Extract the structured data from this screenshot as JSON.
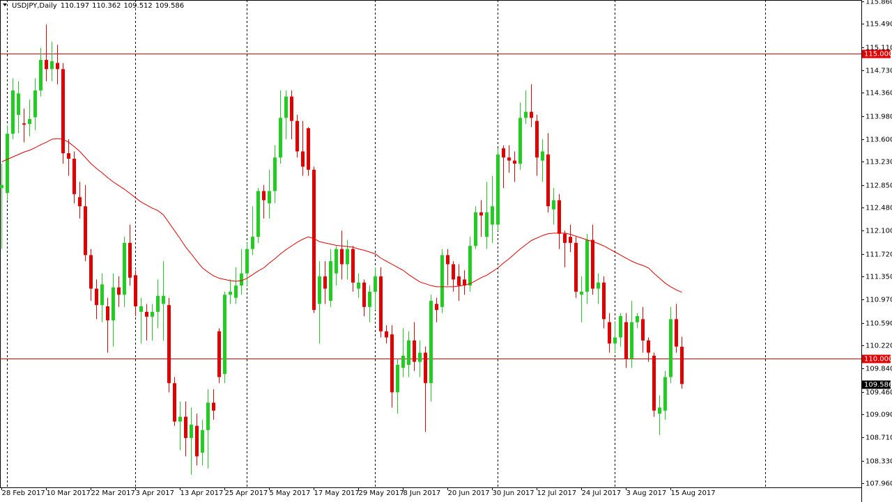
{
  "chart_data": {
    "type": "candlestick",
    "title": "USDJPY,Daily",
    "categories": [
      "28 Feb 2017",
      null,
      null,
      null,
      null,
      null,
      null,
      null,
      "10 Mar 2017",
      null,
      null,
      null,
      null,
      null,
      null,
      null,
      "22 Mar 2017",
      null,
      null,
      null,
      null,
      null,
      null,
      null,
      "3 Apr 2017",
      null,
      null,
      null,
      null,
      null,
      null,
      null,
      "13 Apr 2017",
      null,
      null,
      null,
      null,
      null,
      null,
      null,
      "25 Apr 2017",
      null,
      null,
      null,
      null,
      null,
      null,
      null,
      "5 May 2017",
      null,
      null,
      null,
      null,
      null,
      null,
      null,
      "17 May 2017",
      null,
      null,
      null,
      null,
      null,
      null,
      null,
      "29 May 2017",
      null,
      null,
      null,
      null,
      null,
      null,
      null,
      "8 Jun 2017",
      null,
      null,
      null,
      null,
      null,
      null,
      null,
      "20 Jun 2017",
      null,
      null,
      null,
      null,
      null,
      null,
      null,
      "30 Jun 2017",
      null,
      null,
      null,
      null,
      null,
      null,
      null,
      "12 Jul 2017",
      null,
      null,
      null,
      null,
      null,
      null,
      null,
      "24 Jul 2017",
      null,
      null,
      null,
      null,
      null,
      null,
      null,
      "3 Aug 2017",
      null,
      null,
      null,
      null,
      null,
      null,
      null,
      "15 Aug 2017",
      null,
      null
    ],
    "open": [
      112.8,
      112.72,
      113.69,
      114.0,
      113.86,
      113.85,
      113.96,
      114.4,
      114.9,
      114.75,
      114.85,
      114.75,
      113.37,
      113.28,
      112.65,
      112.5,
      111.7,
      111.15,
      110.88,
      110.86,
      110.63,
      111.17,
      111.05,
      111.9,
      111.37,
      110.77,
      110.77,
      110.69,
      110.77,
      110.9,
      110.88,
      109.6,
      108.97,
      109.05,
      108.7,
      108.9,
      108.46,
      108.83,
      109.28,
      110.45,
      109.75,
      111.05,
      111.0,
      111.2,
      111.4,
      111.8,
      112.0,
      112.75,
      112.55,
      112.75,
      113.3,
      113.95,
      114.3,
      113.9,
      113.4,
      113.78,
      113.1,
      110.9,
      111.35,
      110.95,
      111.4,
      111.8,
      111.55,
      111.8,
      111.15,
      111.25,
      110.85,
      111.1,
      111.35,
      110.45,
      110.4,
      109.45,
      109.85,
      109.9,
      110.3,
      109.95,
      110.1,
      109.6,
      110.9,
      110.85,
      111.7,
      111.55,
      111.35,
      111.3,
      111.2,
      111.85,
      112.4,
      112.0,
      112.2,
      112.2,
      113.45,
      113.3,
      113.25,
      113.2,
      113.95,
      114.05,
      113.9,
      113.25,
      113.35,
      112.45,
      112.6,
      112.05,
      112.0,
      111.9,
      111.05,
      111.1,
      111.95,
      111.15,
      111.25,
      110.6,
      110.25,
      110.35,
      110.6,
      110.0,
      110.6,
      110.65,
      110.3,
      110.05,
      109.1,
      109.15,
      109.7,
      110.65,
      110.197
    ],
    "high": [
      113.2,
      113.83,
      114.6,
      114.55,
      114.1,
      114.25,
      114.6,
      115.1,
      115.48,
      115.2,
      115.15,
      114.85,
      113.6,
      113.4,
      112.9,
      112.85,
      111.8,
      111.3,
      111.4,
      111.0,
      111.4,
      111.35,
      112.0,
      112.2,
      111.45,
      111.0,
      110.9,
      110.9,
      111.3,
      111.6,
      111.0,
      109.7,
      109.3,
      109.3,
      109.2,
      109.1,
      109.0,
      109.5,
      109.5,
      110.5,
      111.1,
      111.3,
      111.5,
      111.8,
      111.9,
      112.5,
      112.8,
      112.85,
      113.1,
      113.5,
      114.4,
      114.4,
      114.4,
      114.0,
      113.9,
      113.8,
      113.15,
      111.6,
      111.6,
      111.8,
      111.85,
      112.1,
      111.95,
      111.85,
      111.4,
      111.3,
      111.2,
      111.5,
      111.5,
      110.55,
      110.55,
      110.0,
      110.5,
      110.45,
      110.6,
      110.3,
      110.2,
      111.05,
      111.0,
      111.8,
      111.8,
      111.6,
      111.55,
      111.45,
      112.0,
      112.5,
      112.6,
      112.9,
      113.0,
      113.45,
      113.5,
      113.5,
      113.4,
      114.2,
      114.4,
      114.5,
      114.0,
      113.6,
      113.7,
      112.8,
      112.7,
      112.1,
      112.2,
      112.0,
      111.35,
      112.05,
      112.2,
      111.4,
      111.35,
      110.75,
      110.6,
      110.75,
      110.75,
      110.95,
      110.75,
      110.85,
      110.35,
      110.1,
      109.4,
      109.8,
      110.85,
      110.9,
      110.362
    ],
    "low": [
      111.8,
      112.6,
      113.6,
      113.7,
      113.55,
      113.65,
      113.75,
      114.3,
      114.55,
      114.55,
      114.5,
      113.2,
      113.0,
      112.55,
      112.3,
      111.6,
      110.95,
      110.65,
      110.6,
      110.1,
      110.2,
      110.85,
      110.85,
      111.2,
      110.7,
      110.25,
      110.3,
      110.3,
      110.5,
      110.3,
      109.45,
      108.9,
      108.5,
      108.4,
      108.1,
      108.25,
      108.25,
      108.2,
      109.0,
      109.6,
      109.6,
      110.9,
      110.9,
      111.05,
      111.2,
      111.7,
      111.9,
      112.3,
      112.3,
      112.55,
      113.2,
      113.6,
      113.6,
      113.3,
      113.0,
      113.0,
      110.75,
      110.25,
      110.9,
      110.85,
      111.2,
      111.3,
      111.3,
      111.1,
      111.0,
      110.7,
      110.6,
      110.8,
      110.35,
      110.25,
      109.2,
      109.1,
      109.7,
      109.7,
      109.8,
      109.7,
      108.8,
      109.3,
      110.6,
      110.75,
      111.2,
      111.1,
      110.95,
      111.05,
      111.1,
      111.8,
      112.0,
      111.8,
      111.9,
      112.1,
      112.8,
      113.05,
      112.9,
      113.1,
      113.85,
      113.8,
      113.0,
      112.9,
      112.4,
      112.2,
      111.8,
      111.5,
      111.75,
      111.0,
      110.6,
      110.9,
      111.05,
      110.9,
      110.5,
      110.1,
      110.1,
      110.2,
      109.85,
      109.85,
      110.5,
      110.1,
      109.95,
      109.05,
      108.75,
      109.0,
      109.6,
      110.1,
      109.512
    ],
    "close": [
      112.85,
      113.69,
      114.4,
      114.35,
      113.84,
      113.93,
      114.4,
      114.9,
      114.75,
      114.88,
      114.75,
      113.37,
      113.28,
      112.7,
      112.5,
      111.7,
      111.15,
      110.88,
      111.22,
      110.63,
      111.17,
      111.05,
      111.9,
      111.33,
      110.86,
      110.86,
      110.69,
      110.77,
      111.03,
      111.03,
      109.6,
      108.97,
      109.05,
      108.7,
      108.92,
      108.4,
      108.83,
      109.28,
      109.15,
      109.7,
      111.05,
      111.1,
      111.2,
      111.4,
      111.8,
      112.0,
      112.75,
      112.6,
      112.75,
      113.3,
      113.95,
      114.3,
      113.9,
      113.4,
      113.15,
      113.1,
      110.8,
      111.35,
      111.15,
      111.6,
      111.8,
      111.55,
      111.8,
      111.25,
      111.25,
      110.85,
      111.1,
      111.35,
      110.45,
      110.35,
      109.45,
      109.9,
      110.05,
      110.3,
      109.95,
      110.1,
      109.6,
      110.95,
      110.8,
      111.7,
      111.55,
      111.3,
      111.2,
      111.2,
      111.85,
      112.4,
      112.35,
      112.4,
      112.5,
      113.35,
      113.3,
      113.25,
      113.2,
      113.95,
      114.05,
      113.95,
      113.3,
      113.4,
      112.5,
      112.6,
      112.05,
      111.9,
      111.9,
      111.1,
      111.1,
      111.95,
      111.15,
      111.25,
      110.65,
      110.25,
      110.35,
      110.7,
      110.0,
      110.6,
      110.7,
      110.3,
      110.1,
      109.15,
      109.2,
      109.7,
      110.65,
      110.2,
      109.586
    ],
    "ma_values": [
      113.23,
      113.27,
      113.31,
      113.35,
      113.39,
      113.42,
      113.46,
      113.51,
      113.55,
      113.6,
      113.61,
      113.6,
      113.55,
      113.48,
      113.4,
      113.3,
      113.2,
      113.12,
      113.05,
      112.97,
      112.9,
      112.84,
      112.78,
      112.71,
      112.64,
      112.57,
      112.52,
      112.47,
      112.43,
      112.36,
      112.23,
      112.1,
      111.97,
      111.83,
      111.72,
      111.6,
      111.49,
      111.42,
      111.36,
      111.32,
      111.3,
      111.28,
      111.27,
      111.28,
      111.32,
      111.38,
      111.44,
      111.49,
      111.57,
      111.64,
      111.72,
      111.79,
      111.85,
      111.91,
      111.96,
      112.0,
      111.97,
      111.92,
      111.9,
      111.88,
      111.86,
      111.85,
      111.84,
      111.83,
      111.8,
      111.78,
      111.75,
      111.72,
      111.65,
      111.6,
      111.55,
      111.5,
      111.45,
      111.38,
      111.32,
      111.26,
      111.23,
      111.2,
      111.18,
      111.18,
      111.18,
      111.18,
      111.19,
      111.21,
      111.23,
      111.28,
      111.33,
      111.37,
      111.43,
      111.49,
      111.57,
      111.64,
      111.72,
      111.8,
      111.87,
      111.94,
      111.98,
      112.02,
      112.05,
      112.06,
      112.06,
      112.06,
      112.04,
      112.01,
      111.98,
      111.95,
      111.92,
      111.89,
      111.85,
      111.8,
      111.75,
      111.7,
      111.65,
      111.6,
      111.56,
      111.53,
      111.49,
      111.4,
      111.32,
      111.24,
      111.18,
      111.13,
      111.09
    ],
    "up_color": "#22cc22",
    "down_color": "#e00000",
    "ma_color": "#e00000",
    "ylim": [
      107.891,
      115.883
    ],
    "yticks": [
      {
        "value": 115.86,
        "label": "115.860"
      },
      {
        "value": 115.49,
        "label": "115.490"
      },
      {
        "value": 115.11,
        "label": "115.110"
      },
      {
        "value": 114.73,
        "label": "114.730"
      },
      {
        "value": 114.36,
        "label": "114.360"
      },
      {
        "value": 113.98,
        "label": "113.980"
      },
      {
        "value": 113.6,
        "label": "113.600"
      },
      {
        "value": 113.23,
        "label": "113.230"
      },
      {
        "value": 112.85,
        "label": "112.850"
      },
      {
        "value": 112.48,
        "label": "112.480"
      },
      {
        "value": 112.1,
        "label": "112.100"
      },
      {
        "value": 111.72,
        "label": "111.720"
      },
      {
        "value": 111.35,
        "label": "111.350"
      },
      {
        "value": 110.97,
        "label": "110.970"
      },
      {
        "value": 110.59,
        "label": "110.590"
      },
      {
        "value": 110.22,
        "label": "110.220"
      },
      {
        "value": 109.84,
        "label": "109.840"
      },
      {
        "value": 109.46,
        "label": "109.460"
      },
      {
        "value": 109.09,
        "label": "109.090"
      },
      {
        "value": 108.71,
        "label": "108.710"
      },
      {
        "value": 108.33,
        "label": "108.330"
      },
      {
        "value": 107.96,
        "label": "107.960"
      }
    ],
    "hlines": [
      {
        "value": 115,
        "label": "115.000"
      },
      {
        "value": 110,
        "label": "110.000"
      }
    ],
    "hline_color": "#e00000"
  }
}
